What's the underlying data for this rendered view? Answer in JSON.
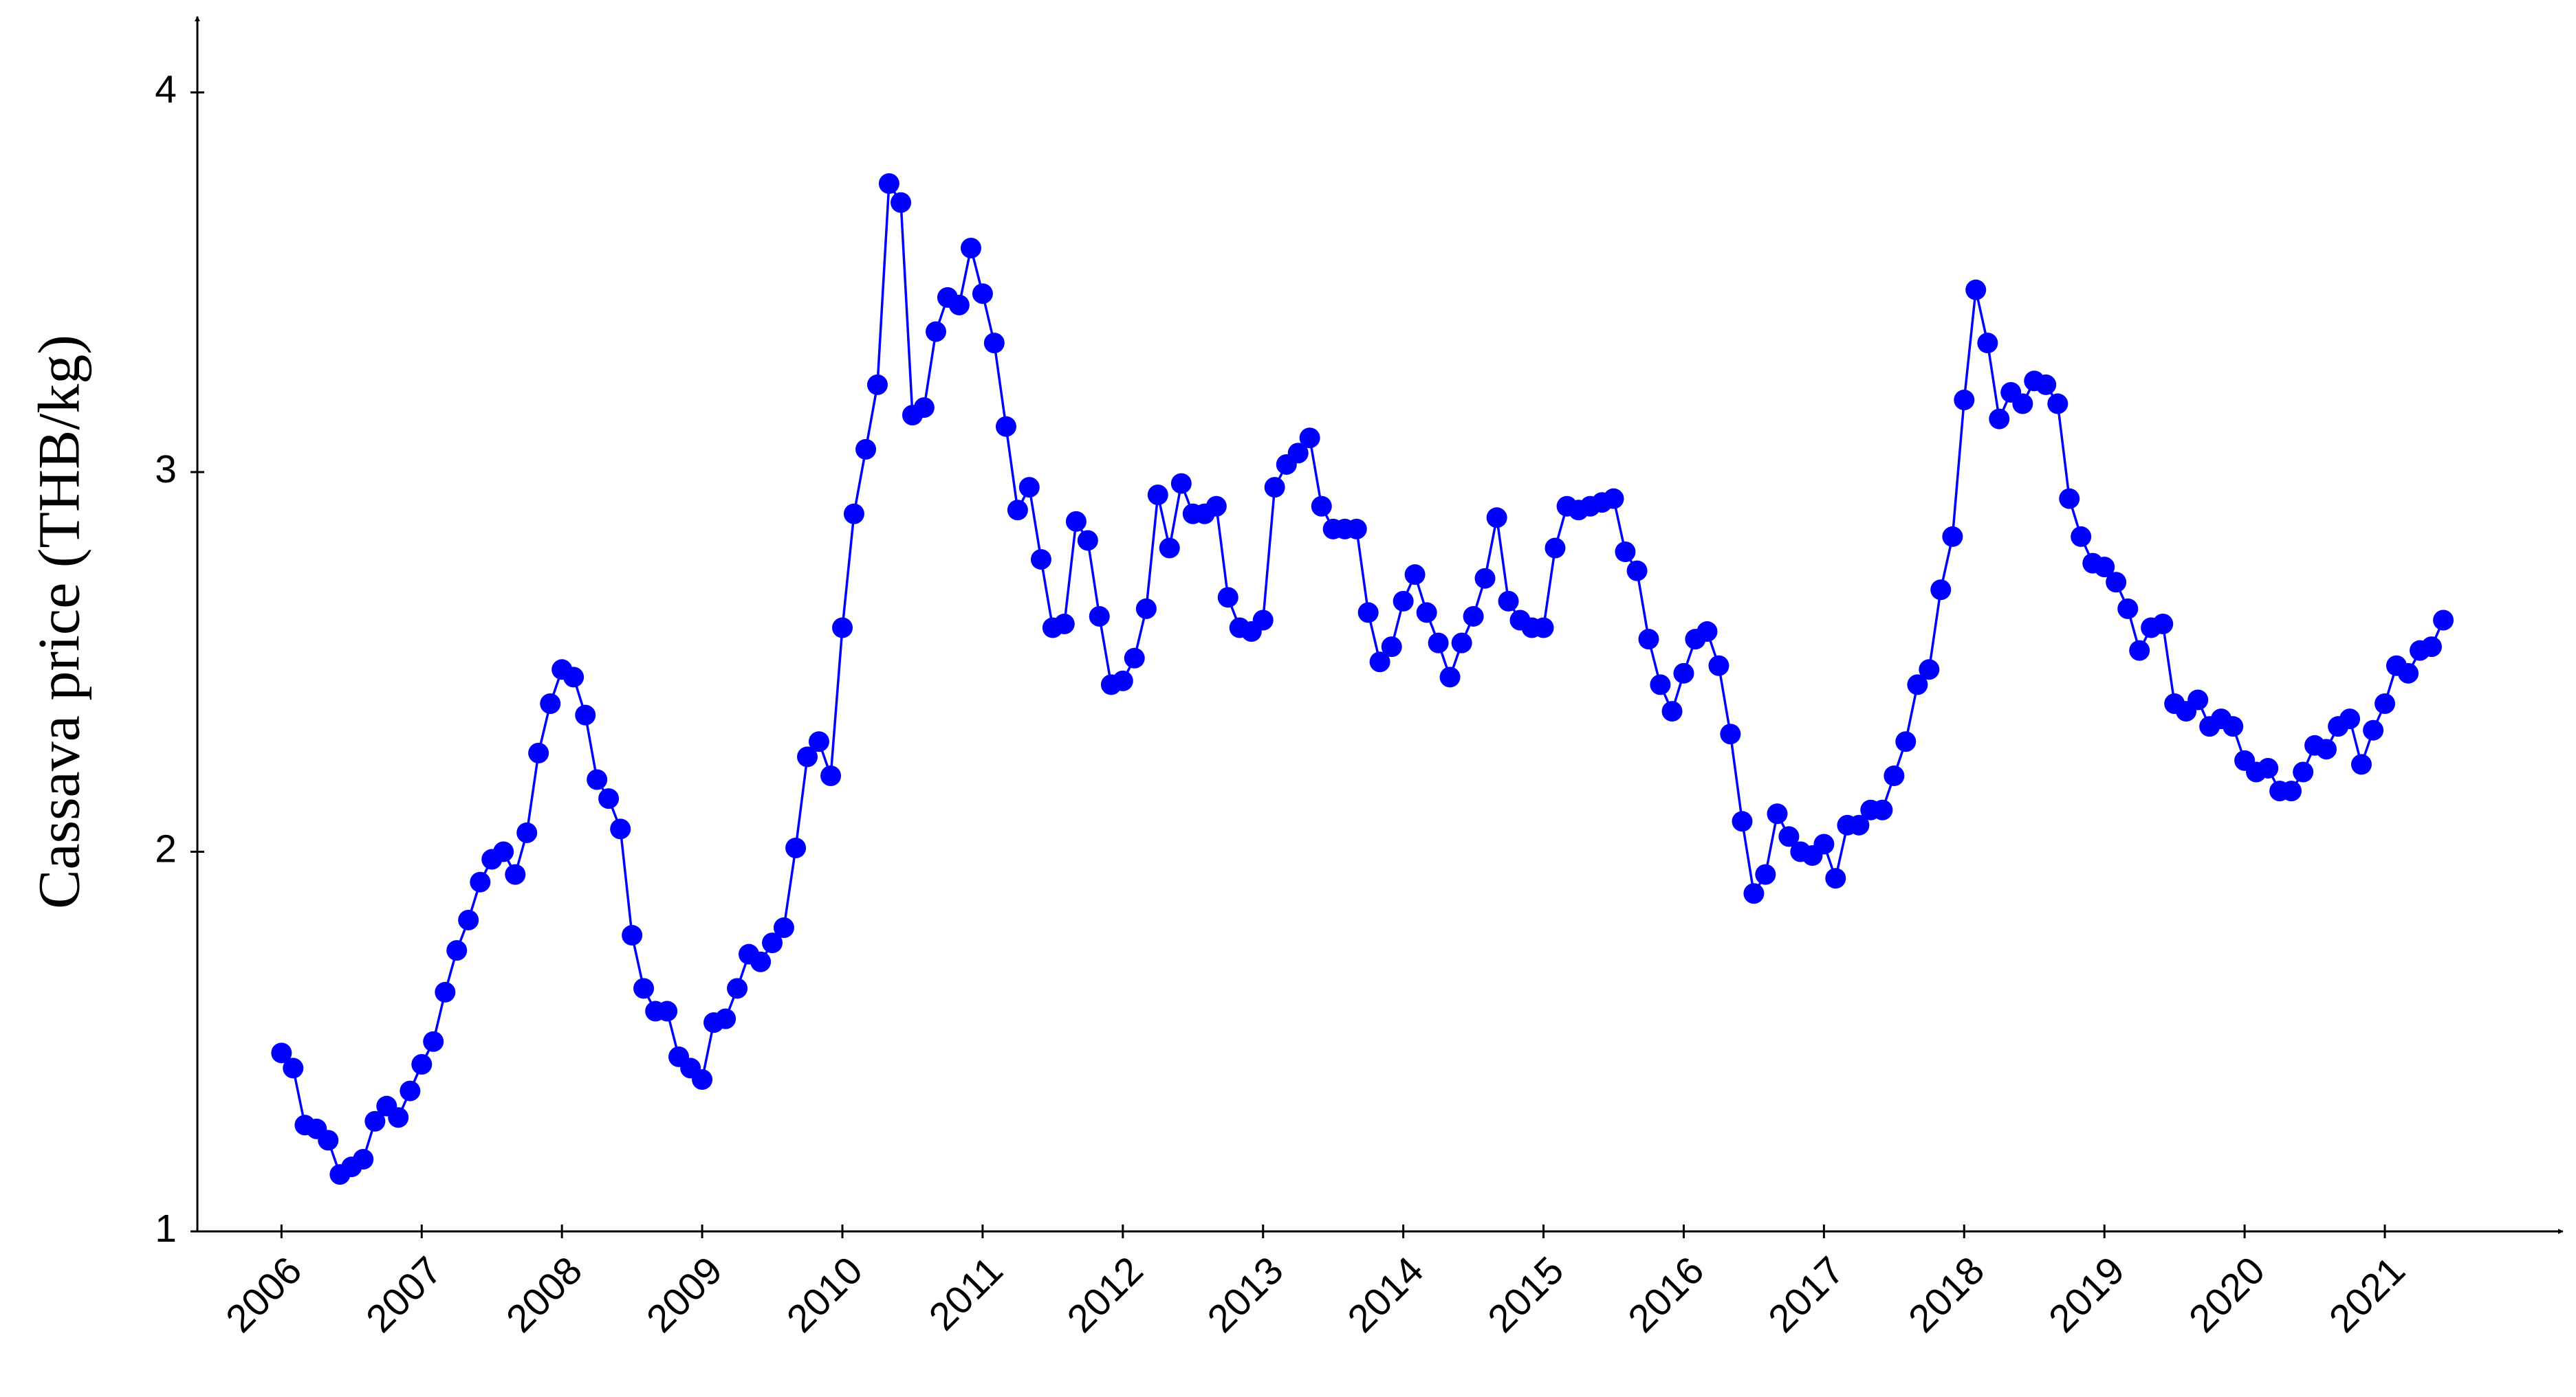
{
  "chart_data": {
    "type": "line",
    "y_label": "Cassava price (THB/kg)",
    "x": [
      2006,
      2006.083,
      2006.167,
      2006.25,
      2006.333,
      2006.417,
      2006.5,
      2006.583,
      2006.667,
      2006.75,
      2006.833,
      2006.917,
      2007,
      2007.083,
      2007.167,
      2007.25,
      2007.333,
      2007.417,
      2007.5,
      2007.583,
      2007.667,
      2007.75,
      2007.833,
      2007.917,
      2008,
      2008.083,
      2008.167,
      2008.25,
      2008.333,
      2008.417,
      2008.5,
      2008.583,
      2008.667,
      2008.75,
      2008.833,
      2008.917,
      2009,
      2009.083,
      2009.167,
      2009.25,
      2009.333,
      2009.417,
      2009.5,
      2009.583,
      2009.667,
      2009.75,
      2009.833,
      2009.917,
      2010,
      2010.083,
      2010.167,
      2010.25,
      2010.333,
      2010.417,
      2010.5,
      2010.583,
      2010.667,
      2010.75,
      2010.833,
      2010.917,
      2011,
      2011.083,
      2011.167,
      2011.25,
      2011.333,
      2011.417,
      2011.5,
      2011.583,
      2011.667,
      2011.75,
      2011.833,
      2011.917,
      2012,
      2012.083,
      2012.167,
      2012.25,
      2012.333,
      2012.417,
      2012.5,
      2012.583,
      2012.667,
      2012.75,
      2012.833,
      2012.917,
      2013,
      2013.083,
      2013.167,
      2013.25,
      2013.333,
      2013.417,
      2013.5,
      2013.583,
      2013.667,
      2013.75,
      2013.833,
      2013.917,
      2014,
      2014.083,
      2014.167,
      2014.25,
      2014.333,
      2014.417,
      2014.5,
      2014.583,
      2014.667,
      2014.75,
      2014.833,
      2014.917,
      2015,
      2015.083,
      2015.167,
      2015.25,
      2015.333,
      2015.417,
      2015.5,
      2015.583,
      2015.667,
      2015.75,
      2015.833,
      2015.917,
      2016,
      2016.083,
      2016.167,
      2016.25,
      2016.333,
      2016.417,
      2016.5,
      2016.583,
      2016.667,
      2016.75,
      2016.833,
      2016.917,
      2017,
      2017.083,
      2017.167,
      2017.25,
      2017.333,
      2017.417,
      2017.5,
      2017.583,
      2017.667,
      2017.75,
      2017.833,
      2017.917,
      2018,
      2018.083,
      2018.167,
      2018.25,
      2018.333,
      2018.417,
      2018.5,
      2018.583,
      2018.667,
      2018.75,
      2018.833,
      2018.917,
      2019,
      2019.083,
      2019.167,
      2019.25,
      2019.333,
      2019.417,
      2019.5,
      2019.583,
      2019.667,
      2019.75,
      2019.833,
      2019.917,
      2020,
      2020.083,
      2020.167,
      2020.25,
      2020.333,
      2020.417,
      2020.5,
      2020.583,
      2020.667,
      2020.75,
      2020.833,
      2020.917,
      2021,
      2021.083,
      2021.167,
      2021.25,
      2021.333,
      2021.417
    ],
    "series": [
      {
        "color": "#0000ff",
        "values": [
          1.47,
          1.43,
          1.28,
          1.27,
          1.24,
          1.15,
          1.17,
          1.19,
          1.29,
          1.33,
          1.3,
          1.37,
          1.44,
          1.5,
          1.63,
          1.74,
          1.82,
          1.92,
          1.98,
          2.0,
          1.94,
          2.05,
          2.26,
          2.39,
          2.48,
          2.46,
          2.36,
          2.19,
          2.14,
          2.06,
          1.78,
          1.64,
          1.58,
          1.58,
          1.46,
          1.43,
          1.4,
          1.55,
          1.56,
          1.64,
          1.73,
          1.71,
          1.76,
          1.8,
          2.01,
          2.25,
          2.29,
          2.2,
          2.59,
          2.89,
          3.06,
          3.23,
          3.76,
          3.71,
          3.15,
          3.17,
          3.37,
          3.46,
          3.44,
          3.59,
          3.47,
          3.34,
          3.12,
          2.9,
          2.96,
          2.77,
          2.59,
          2.6,
          2.87,
          2.82,
          2.62,
          2.44,
          2.45,
          2.51,
          2.64,
          2.94,
          2.8,
          2.97,
          2.89,
          2.89,
          2.91,
          2.67,
          2.59,
          2.58,
          2.61,
          2.96,
          3.02,
          3.05,
          3.09,
          2.91,
          2.85,
          2.85,
          2.85,
          2.63,
          2.5,
          2.54,
          2.66,
          2.73,
          2.63,
          2.55,
          2.46,
          2.55,
          2.62,
          2.72,
          2.88,
          2.66,
          2.61,
          2.59,
          2.59,
          2.8,
          2.91,
          2.9,
          2.91,
          2.92,
          2.93,
          2.79,
          2.74,
          2.56,
          2.44,
          2.37,
          2.47,
          2.56,
          2.58,
          2.49,
          2.31,
          2.08,
          1.89,
          1.94,
          2.1,
          2.04,
          2.0,
          1.99,
          2.02,
          1.93,
          2.07,
          2.07,
          2.11,
          2.11,
          2.2,
          2.29,
          2.44,
          2.48,
          2.69,
          2.83,
          3.19,
          3.48,
          3.34,
          3.14,
          3.21,
          3.18,
          3.24,
          3.23,
          3.18,
          2.93,
          2.83,
          2.76,
          2.75,
          2.71,
          2.64,
          2.53,
          2.59,
          2.6,
          2.39,
          2.37,
          2.4,
          2.33,
          2.35,
          2.33,
          2.24,
          2.21,
          2.22,
          2.16,
          2.16,
          2.21,
          2.28,
          2.27,
          2.33,
          2.35,
          2.23,
          2.32,
          2.39,
          2.49,
          2.47,
          2.53,
          2.54,
          2.61
        ]
      }
    ],
    "xlim": [
      2005.4,
      2022.27
    ],
    "xticks": [
      2006,
      2007,
      2008,
      2009,
      2010,
      2011,
      2012,
      2013,
      2014,
      2015,
      2016,
      2017,
      2018,
      2019,
      2020,
      2021
    ],
    "ylim": [
      1,
      4.2
    ],
    "yticks": [
      1,
      2,
      3,
      4
    ],
    "grid": false
  }
}
